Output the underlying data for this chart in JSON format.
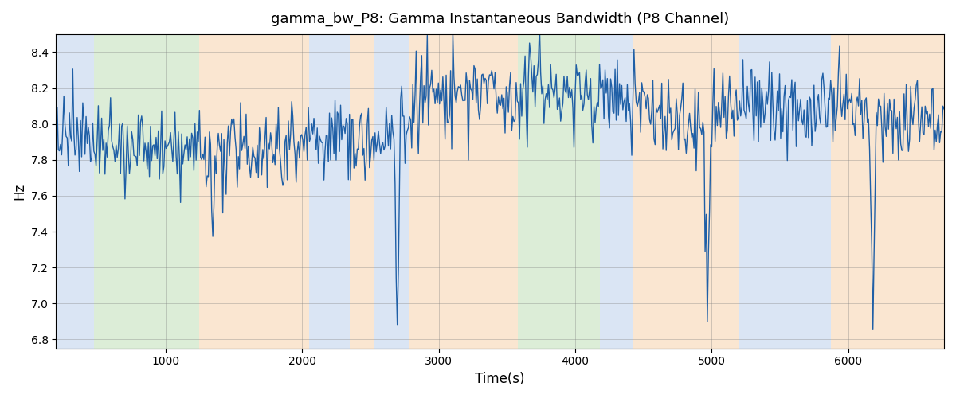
{
  "title": "gamma_bw_P8: Gamma Instantaneous Bandwidth (P8 Channel)",
  "xlabel": "Time(s)",
  "ylabel": "Hz",
  "xlim": [
    200,
    6700
  ],
  "ylim": [
    6.75,
    8.5
  ],
  "yticks": [
    6.8,
    7.0,
    7.2,
    7.4,
    7.6,
    7.8,
    8.0,
    8.2,
    8.4
  ],
  "line_color": "#1f5fa6",
  "line_width": 1.0,
  "bg_color": "#ffffff",
  "bands": [
    {
      "xmin": 200,
      "xmax": 480,
      "color": "#aec6e8",
      "alpha": 0.45
    },
    {
      "xmin": 480,
      "xmax": 1250,
      "color": "#b2d8a8",
      "alpha": 0.45
    },
    {
      "xmin": 1250,
      "xmax": 2050,
      "color": "#f5c89a",
      "alpha": 0.45
    },
    {
      "xmin": 2050,
      "xmax": 2350,
      "color": "#aec6e8",
      "alpha": 0.45
    },
    {
      "xmin": 2350,
      "xmax": 2530,
      "color": "#f5c89a",
      "alpha": 0.45
    },
    {
      "xmin": 2530,
      "xmax": 2780,
      "color": "#aec6e8",
      "alpha": 0.45
    },
    {
      "xmin": 2780,
      "xmax": 3580,
      "color": "#f5c89a",
      "alpha": 0.45
    },
    {
      "xmin": 3580,
      "xmax": 4180,
      "color": "#b2d8a8",
      "alpha": 0.45
    },
    {
      "xmin": 4180,
      "xmax": 4420,
      "color": "#aec6e8",
      "alpha": 0.45
    },
    {
      "xmin": 4420,
      "xmax": 4600,
      "color": "#f5c89a",
      "alpha": 0.45
    },
    {
      "xmin": 4600,
      "xmax": 5200,
      "color": "#f5c89a",
      "alpha": 0.45
    },
    {
      "xmin": 5200,
      "xmax": 5870,
      "color": "#aec6e8",
      "alpha": 0.45
    },
    {
      "xmin": 5870,
      "xmax": 6080,
      "color": "#f5c89a",
      "alpha": 0.45
    },
    {
      "xmin": 6080,
      "xmax": 6700,
      "color": "#f5c89a",
      "alpha": 0.45
    }
  ],
  "seed": 42,
  "signal_mean": 8.0,
  "noise_std": 0.12
}
